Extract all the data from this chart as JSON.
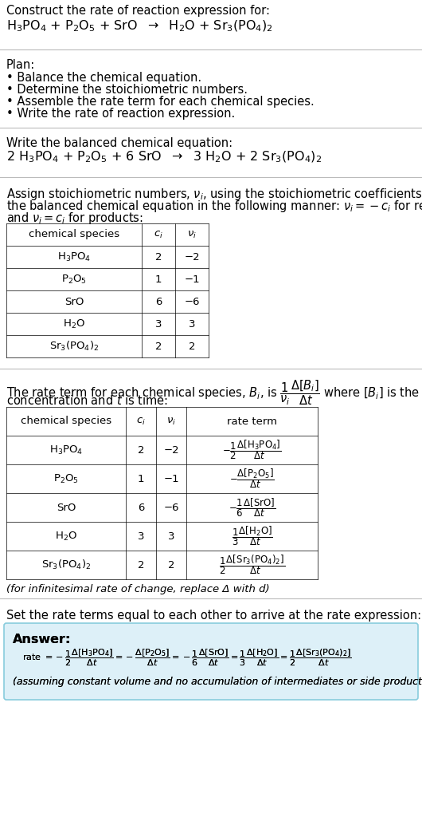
{
  "bg_color": "#ffffff",
  "text_color": "#000000",
  "title_line1": "Construct the rate of reaction expression for:",
  "plan_title": "Plan:",
  "plan_items": [
    "• Balance the chemical equation.",
    "• Determine the stoichiometric numbers.",
    "• Assemble the rate term for each chemical species.",
    "• Write the rate of reaction expression."
  ],
  "balanced_label": "Write the balanced chemical equation:",
  "table1_headers": [
    "chemical species",
    "$c_i$",
    "$\\nu_i$"
  ],
  "table1_data": [
    [
      "$\\mathregular{H_3PO_4}$",
      "2",
      "−2"
    ],
    [
      "$\\mathregular{P_2O_5}$",
      "1",
      "−1"
    ],
    [
      "SrO",
      "6",
      "−6"
    ],
    [
      "$\\mathregular{H_2O}$",
      "3",
      "3"
    ],
    [
      "$\\mathregular{Sr_3(PO_4)_2}$",
      "2",
      "2"
    ]
  ],
  "table2_headers": [
    "chemical species",
    "$c_i$",
    "$\\nu_i$",
    "rate term"
  ],
  "table2_data": [
    [
      "$\\mathregular{H_3PO_4}$",
      "2",
      "−2",
      "$-\\dfrac{1}{2}\\dfrac{\\Delta[\\mathregular{H_3PO_4}]}{\\Delta t}$"
    ],
    [
      "$\\mathregular{P_2O_5}$",
      "1",
      "−1",
      "$-\\dfrac{\\Delta[\\mathregular{P_2O_5}]}{\\Delta t}$"
    ],
    [
      "SrO",
      "6",
      "−6",
      "$-\\dfrac{1}{6}\\dfrac{\\Delta[\\mathregular{SrO}]}{\\Delta t}$"
    ],
    [
      "$\\mathregular{H_2O}$",
      "3",
      "3",
      "$\\dfrac{1}{3}\\dfrac{\\Delta[\\mathregular{H_2O}]}{\\Delta t}$"
    ],
    [
      "$\\mathregular{Sr_3(PO_4)_2}$",
      "2",
      "2",
      "$\\dfrac{1}{2}\\dfrac{\\Delta[\\mathregular{Sr_3(PO_4)_2}]}{\\Delta t}$"
    ]
  ],
  "infinitesimal_note": "(for infinitesimal rate of change, replace Δ with d)",
  "set_rate_text": "Set the rate terms equal to each other to arrive at the rate expression:",
  "answer_box_color": "#ddf0f8",
  "answer_box_border": "#88ccdd",
  "answer_label": "Answer:",
  "assuming_note": "(assuming constant volume and no accumulation of intermediates or side products)"
}
